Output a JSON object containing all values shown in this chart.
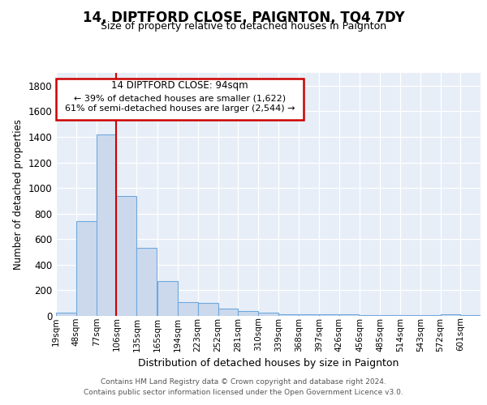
{
  "title": "14, DIPTFORD CLOSE, PAIGNTON, TQ4 7DY",
  "subtitle": "Size of property relative to detached houses in Paignton",
  "xlabel": "Distribution of detached houses by size in Paignton",
  "ylabel": "Number of detached properties",
  "bin_labels": [
    "19sqm",
    "48sqm",
    "77sqm",
    "106sqm",
    "135sqm",
    "165sqm",
    "194sqm",
    "223sqm",
    "252sqm",
    "281sqm",
    "310sqm",
    "339sqm",
    "368sqm",
    "397sqm",
    "426sqm",
    "456sqm",
    "485sqm",
    "514sqm",
    "543sqm",
    "572sqm",
    "601sqm"
  ],
  "bar_heights": [
    25,
    740,
    1420,
    940,
    530,
    270,
    105,
    100,
    55,
    40,
    25,
    15,
    10,
    10,
    10,
    5,
    5,
    5,
    5,
    15,
    5
  ],
  "bar_color": "#ccd9ed",
  "bar_edge_color": "#6fa8dc",
  "property_line_color": "#cc0000",
  "annotation_box_color": "#cc0000",
  "annotation_line1": "14 DIPTFORD CLOSE: 94sqm",
  "annotation_line2": "← 39% of detached houses are smaller (1,622)",
  "annotation_line3": "61% of semi-detached houses are larger (2,544) →",
  "footer_line1": "Contains HM Land Registry data © Crown copyright and database right 2024.",
  "footer_line2": "Contains public sector information licensed under the Open Government Licence v3.0.",
  "ylim": [
    0,
    1900
  ],
  "yticks": [
    0,
    200,
    400,
    600,
    800,
    1000,
    1200,
    1400,
    1600,
    1800
  ],
  "background_color": "#e8eef8"
}
